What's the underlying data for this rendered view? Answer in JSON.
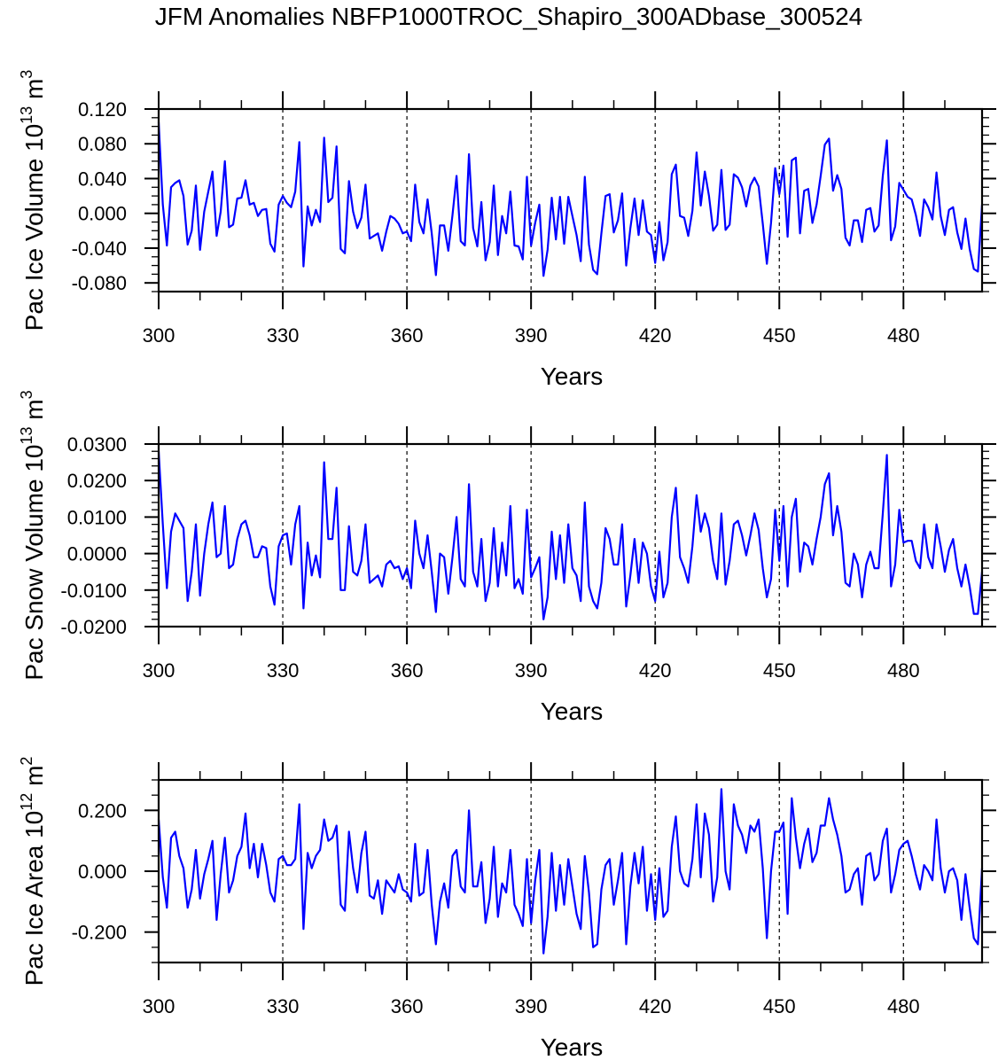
{
  "title": "JFM Anomalies NBFP1000TROC_Shapiro_300ADbase_300524",
  "colors": {
    "line": "#0000ff",
    "axis": "#000000"
  },
  "chart_data": [
    {
      "type": "line",
      "ylabel": {
        "text": "Pac Ice Volume 10",
        "exp": "13",
        "unit": " m",
        "unit_exp": "3"
      },
      "xlabel": "Years",
      "xlim": [
        300,
        499
      ],
      "ylim": [
        -0.09,
        0.12
      ],
      "x_ticks": [
        300,
        330,
        360,
        390,
        420,
        450,
        480
      ],
      "x_tick_labels": [
        "300",
        "330",
        "360",
        "390",
        "420",
        "450",
        "480"
      ],
      "y_ticks": [
        0.12,
        0.08,
        0.04,
        0.0,
        -0.04,
        -0.08
      ],
      "y_tick_labels": [
        "0.120",
        "0.080",
        "0.040",
        "0.000",
        "-0.040",
        "-0.080"
      ],
      "y_minor_step": 0.01,
      "grid": "dashed vertical at x ticks",
      "x_start": 300,
      "values": [
        0.105,
        0.01,
        -0.037,
        0.03,
        0.035,
        0.038,
        0.02,
        -0.036,
        -0.02,
        0.032,
        -0.042,
        0.002,
        0.025,
        0.048,
        -0.026,
        0.002,
        0.06,
        -0.016,
        -0.013,
        0.017,
        0.018,
        0.038,
        0.01,
        0.012,
        -0.003,
        0.004,
        0.005,
        -0.035,
        -0.044,
        0.01,
        0.02,
        0.012,
        0.007,
        0.025,
        0.082,
        -0.061,
        0.008,
        -0.014,
        0.004,
        -0.01,
        0.087,
        0.013,
        0.018,
        0.077,
        -0.041,
        -0.046,
        0.037,
        0.002,
        -0.017,
        -0.005,
        0.033,
        -0.029,
        -0.026,
        -0.023,
        -0.043,
        -0.021,
        -0.003,
        -0.006,
        -0.012,
        -0.023,
        -0.021,
        -0.032,
        0.033,
        -0.01,
        -0.023,
        0.016,
        -0.023,
        -0.071,
        -0.014,
        -0.014,
        -0.043,
        -0.002,
        0.043,
        -0.032,
        -0.037,
        0.068,
        -0.017,
        -0.038,
        0.013,
        -0.054,
        -0.033,
        0.032,
        -0.048,
        -0.003,
        -0.023,
        0.025,
        -0.037,
        -0.038,
        -0.053,
        0.042,
        -0.037,
        -0.011,
        0.01,
        -0.072,
        -0.042,
        0.018,
        -0.03,
        0.019,
        -0.035,
        0.019,
        -0.003,
        -0.025,
        -0.055,
        0.042,
        -0.036,
        -0.065,
        -0.07,
        -0.023,
        0.02,
        0.022,
        -0.022,
        -0.008,
        0.023,
        -0.06,
        -0.017,
        0.017,
        -0.025,
        0.015,
        -0.021,
        -0.025,
        -0.057,
        -0.01,
        -0.054,
        -0.033,
        0.045,
        0.056,
        -0.003,
        -0.005,
        -0.026,
        0.003,
        0.07,
        0.009,
        0.048,
        0.02,
        -0.02,
        -0.013,
        0.05,
        -0.019,
        -0.013,
        0.045,
        0.041,
        0.03,
        0.008,
        0.032,
        0.041,
        0.031,
        -0.012,
        -0.058,
        -0.011,
        0.052,
        0.022,
        0.055,
        -0.027,
        0.061,
        0.064,
        -0.023,
        0.026,
        0.028,
        -0.011,
        0.01,
        0.043,
        0.079,
        0.086,
        0.026,
        0.044,
        0.028,
        -0.028,
        -0.037,
        -0.008,
        -0.008,
        -0.033,
        0.004,
        0.006,
        -0.021,
        -0.014,
        0.043,
        0.084,
        -0.031,
        -0.015,
        0.035,
        0.027,
        0.019,
        0.016,
        -0.002,
        -0.026,
        0.016,
        0.007,
        -0.007,
        0.047,
        -0.003,
        -0.025,
        0.004,
        0.007,
        -0.022,
        -0.041,
        -0.006,
        -0.041,
        -0.064,
        -0.067,
        0.01
      ]
    },
    {
      "type": "line",
      "ylabel": {
        "text": "Pac Snow Volume 10",
        "exp": "13",
        "unit": " m",
        "unit_exp": "3"
      },
      "xlabel": "Years",
      "xlim": [
        300,
        499
      ],
      "ylim": [
        -0.02,
        0.03
      ],
      "x_ticks": [
        300,
        330,
        360,
        390,
        420,
        450,
        480
      ],
      "x_tick_labels": [
        "300",
        "330",
        "360",
        "390",
        "420",
        "450",
        "480"
      ],
      "y_ticks": [
        0.03,
        0.02,
        0.01,
        0.0,
        -0.01,
        -0.02
      ],
      "y_tick_labels": [
        "0.0300",
        "0.0200",
        "0.0100",
        "0.0000",
        "-0.0100",
        "-0.0200"
      ],
      "y_minor_step": 0.002,
      "grid": "dashed vertical at x ticks",
      "x_start": 300,
      "values": [
        0.028,
        0.008,
        -0.0095,
        0.006,
        0.011,
        0.009,
        0.007,
        -0.013,
        -0.005,
        0.008,
        -0.0115,
        0.0,
        0.008,
        0.014,
        -0.001,
        0.0,
        0.013,
        -0.004,
        -0.003,
        0.004,
        0.008,
        0.009,
        0.005,
        -0.001,
        -0.001,
        0.002,
        0.0015,
        -0.009,
        -0.014,
        0.002,
        0.005,
        0.0055,
        -0.003,
        0.008,
        0.013,
        -0.015,
        0.003,
        -0.006,
        -0.0005,
        -0.0065,
        0.025,
        0.004,
        0.004,
        0.018,
        -0.01,
        -0.01,
        0.0075,
        -0.005,
        -0.006,
        -0.002,
        0.008,
        -0.008,
        -0.007,
        -0.006,
        -0.009,
        -0.003,
        -0.002,
        -0.004,
        -0.0035,
        -0.007,
        -0.004,
        -0.0095,
        0.009,
        0.0,
        -0.004,
        0.005,
        -0.005,
        -0.016,
        0.0,
        -0.001,
        -0.011,
        -0.001,
        0.01,
        -0.007,
        -0.009,
        0.019,
        -0.005,
        -0.009,
        0.004,
        -0.013,
        -0.008,
        0.007,
        -0.009,
        0.003,
        -0.006,
        0.013,
        -0.0095,
        -0.007,
        -0.011,
        0.012,
        -0.0065,
        -0.004,
        -0.001,
        -0.018,
        -0.012,
        0.006,
        -0.007,
        0.005,
        -0.008,
        0.008,
        -0.004,
        -0.006,
        -0.013,
        0.014,
        -0.009,
        -0.013,
        -0.015,
        -0.008,
        0.007,
        0.004,
        -0.003,
        -0.003,
        0.008,
        -0.0145,
        -0.006,
        0.004,
        -0.008,
        0.003,
        0.0,
        -0.009,
        -0.013,
        0.0005,
        -0.012,
        -0.008,
        0.01,
        0.018,
        -0.001,
        -0.004,
        -0.008,
        0.002,
        0.016,
        0.006,
        0.011,
        0.007,
        -0.002,
        -0.007,
        0.011,
        -0.0085,
        -0.002,
        0.008,
        0.009,
        0.005,
        -0.0005,
        0.005,
        0.011,
        0.0065,
        -0.004,
        -0.012,
        -0.007,
        0.012,
        -0.002,
        0.013,
        -0.009,
        0.01,
        0.015,
        -0.005,
        0.003,
        0.002,
        -0.003,
        0.004,
        0.01,
        0.019,
        0.022,
        0.005,
        0.013,
        0.006,
        -0.008,
        -0.009,
        0.0,
        -0.003,
        -0.012,
        -0.003,
        0.0005,
        -0.004,
        -0.004,
        0.011,
        0.027,
        -0.009,
        -0.003,
        0.012,
        0.003,
        0.0035,
        0.0035,
        -0.002,
        -0.004,
        0.008,
        -0.001,
        -0.004,
        0.008,
        0.002,
        -0.005,
        0.001,
        0.004,
        -0.004,
        -0.009,
        -0.003,
        -0.009,
        -0.0165,
        -0.0165,
        -0.005
      ]
    },
    {
      "type": "line",
      "ylabel": {
        "text": "Pac Ice Area 10",
        "exp": "12",
        "unit": " m",
        "unit_exp": "2"
      },
      "xlabel": "Years",
      "xlim": [
        300,
        499
      ],
      "ylim": [
        -0.3,
        0.3
      ],
      "x_ticks": [
        300,
        330,
        360,
        390,
        420,
        450,
        480
      ],
      "x_tick_labels": [
        "300",
        "330",
        "360",
        "390",
        "420",
        "450",
        "480"
      ],
      "y_ticks": [
        0.2,
        0.0,
        -0.2
      ],
      "y_tick_labels": [
        "0.200",
        "0.000",
        "-0.200"
      ],
      "y_minor_step": 0.05,
      "grid": "dashed vertical at x ticks",
      "x_start": 300,
      "values": [
        0.17,
        -0.02,
        -0.12,
        0.11,
        0.13,
        0.05,
        0.01,
        -0.12,
        -0.06,
        0.07,
        -0.09,
        -0.01,
        0.04,
        0.1,
        -0.16,
        -0.01,
        0.11,
        -0.07,
        -0.03,
        0.05,
        0.08,
        0.19,
        0.01,
        0.09,
        -0.02,
        0.09,
        0.02,
        -0.07,
        -0.1,
        0.04,
        0.05,
        0.02,
        0.02,
        0.04,
        0.22,
        -0.19,
        0.06,
        0.01,
        0.05,
        0.07,
        0.17,
        0.1,
        0.11,
        0.15,
        -0.11,
        -0.13,
        0.13,
        0.01,
        -0.07,
        0.06,
        0.13,
        -0.08,
        -0.09,
        -0.03,
        -0.14,
        -0.03,
        -0.05,
        -0.07,
        -0.01,
        -0.06,
        -0.07,
        -0.1,
        0.09,
        -0.08,
        -0.07,
        0.07,
        -0.11,
        -0.24,
        -0.1,
        -0.04,
        -0.12,
        0.05,
        0.07,
        -0.05,
        -0.07,
        0.2,
        -0.05,
        -0.05,
        0.03,
        -0.17,
        -0.09,
        0.08,
        -0.15,
        -0.04,
        -0.07,
        0.07,
        -0.11,
        -0.14,
        -0.18,
        0.04,
        -0.17,
        -0.03,
        0.07,
        -0.27,
        -0.15,
        0.06,
        -0.13,
        0.02,
        -0.11,
        0.04,
        -0.05,
        -0.14,
        -0.19,
        0.05,
        -0.07,
        -0.25,
        -0.24,
        -0.06,
        0.02,
        0.04,
        -0.11,
        -0.03,
        0.06,
        -0.24,
        -0.05,
        0.06,
        -0.04,
        0.08,
        -0.13,
        -0.01,
        -0.16,
        0.01,
        -0.15,
        -0.13,
        0.08,
        0.18,
        0.0,
        -0.04,
        -0.05,
        0.04,
        0.22,
        -0.02,
        0.19,
        0.12,
        -0.1,
        -0.02,
        0.27,
        0.0,
        -0.06,
        0.22,
        0.15,
        0.12,
        0.06,
        0.15,
        0.13,
        0.17,
        0.01,
        -0.22,
        0.0,
        0.13,
        0.13,
        0.16,
        -0.14,
        0.24,
        0.11,
        0.01,
        0.09,
        0.14,
        0.03,
        0.06,
        0.15,
        0.15,
        0.24,
        0.17,
        0.12,
        0.05,
        -0.07,
        -0.06,
        -0.01,
        0.01,
        -0.11,
        0.05,
        0.06,
        -0.03,
        -0.01,
        0.1,
        0.14,
        -0.07,
        -0.01,
        0.07,
        0.09,
        0.1,
        0.05,
        -0.01,
        -0.06,
        0.02,
        0.0,
        -0.03,
        0.17,
        0.01,
        -0.07,
        0.0,
        0.01,
        -0.03,
        -0.16,
        -0.01,
        -0.12,
        -0.22,
        -0.24,
        0.01
      ]
    }
  ]
}
